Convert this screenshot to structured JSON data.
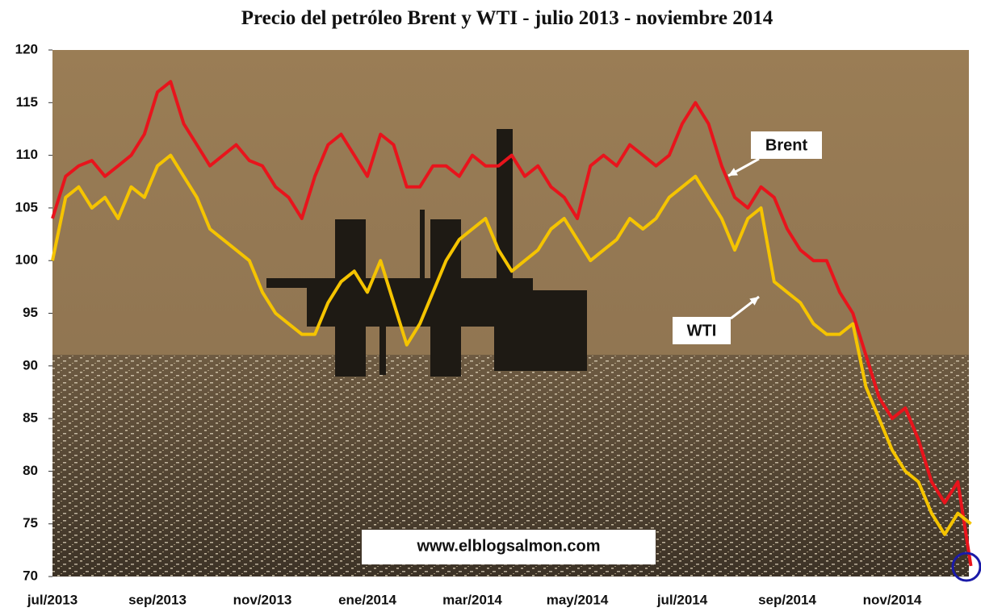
{
  "chart_data": {
    "type": "line",
    "title": "Precio del petróleo Brent y WTI - julio 2013 - noviembre 2014",
    "categories": [
      "jul/2013",
      null,
      null,
      null,
      null,
      null,
      null,
      null,
      "sep/2013",
      null,
      null,
      null,
      null,
      null,
      null,
      null,
      "nov/2013",
      null,
      null,
      null,
      null,
      null,
      null,
      null,
      "ene/2014",
      null,
      null,
      null,
      null,
      null,
      null,
      null,
      "mar/2014",
      null,
      null,
      null,
      null,
      null,
      null,
      null,
      "may/2014",
      null,
      null,
      null,
      null,
      null,
      null,
      null,
      "jul/2014",
      null,
      null,
      null,
      null,
      null,
      null,
      null,
      "sep/2014",
      null,
      null,
      null,
      null,
      null,
      null,
      null,
      "nov/2014",
      null,
      null,
      null,
      null,
      null,
      null
    ],
    "series": [
      {
        "name": "Brent",
        "color": "#e8141c",
        "values": [
          104,
          108,
          109,
          109.5,
          108,
          109,
          110,
          112,
          116,
          117,
          113,
          111,
          109,
          110,
          111,
          109.5,
          109,
          107,
          106,
          104,
          108,
          111,
          112,
          110,
          108,
          112,
          111,
          107,
          107,
          109,
          109,
          108,
          110,
          109,
          109,
          110,
          108,
          109,
          107,
          106,
          104,
          109,
          110,
          109,
          111,
          110,
          109,
          110,
          113,
          115,
          113,
          109,
          106,
          105,
          107,
          106,
          103,
          101,
          100,
          100,
          97,
          95,
          91,
          87,
          85,
          86,
          83,
          79,
          77,
          79,
          71
        ]
      },
      {
        "name": "WTI",
        "color": "#f5c400",
        "values": [
          100,
          106,
          107,
          105,
          106,
          104,
          107,
          106,
          109,
          110,
          108,
          106,
          103,
          102,
          101,
          100,
          97,
          95,
          94,
          93,
          93,
          96,
          98,
          99,
          97,
          100,
          96,
          92,
          94,
          97,
          100,
          102,
          103,
          104,
          101,
          99,
          100,
          101,
          103,
          104,
          102,
          100,
          101,
          102,
          104,
          103,
          104,
          106,
          107,
          108,
          106,
          104,
          101,
          104,
          105,
          98,
          97,
          96,
          94,
          93,
          93,
          94,
          88,
          85,
          82,
          80,
          79,
          76,
          74,
          76,
          75
        ]
      }
    ],
    "ylim": [
      70,
      120
    ],
    "yticks": [
      70,
      75,
      80,
      85,
      90,
      95,
      100,
      105,
      110,
      115,
      120
    ],
    "watermark": "www.elblogsalmon.com"
  }
}
